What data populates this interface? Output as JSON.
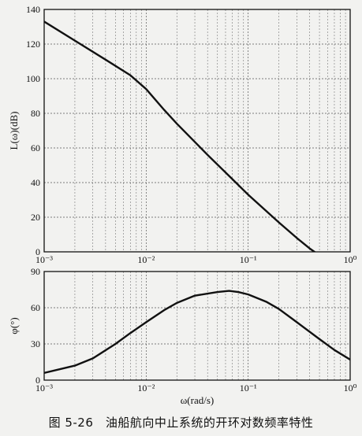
{
  "caption": "图 5-26　油船航向中止系统的开环对数频率特性",
  "chart_data": [
    {
      "type": "line",
      "name": "magnitude",
      "xlabel": "",
      "ylabel": "L(ω)(dB)",
      "xscale": "log",
      "xlim": [
        0.001,
        1
      ],
      "ylim": [
        0,
        140
      ],
      "yticks": [
        0,
        20,
        40,
        60,
        80,
        100,
        120,
        140
      ],
      "xtick_labels": [
        "10⁻³",
        "10⁻²",
        "10⁻¹",
        "10⁰"
      ],
      "grid": true,
      "series": [
        {
          "x": [
            0.001,
            0.002,
            0.004,
            0.007,
            0.01,
            0.015,
            0.02,
            0.04,
            0.07,
            0.1,
            0.2,
            0.3,
            0.4,
            0.5
          ],
          "y": [
            133,
            122,
            111,
            102,
            94,
            82,
            74,
            56,
            42,
            33,
            17,
            8,
            2,
            -2
          ]
        }
      ]
    },
    {
      "type": "line",
      "name": "phase",
      "xlabel": "ω(rad/s)",
      "ylabel": "φ(°)",
      "xscale": "log",
      "xlim": [
        0.001,
        1
      ],
      "ylim": [
        0,
        90
      ],
      "yticks": [
        0,
        30,
        60,
        90
      ],
      "xtick_labels": [
        "10⁻³",
        "10⁻²",
        "10⁻¹",
        "10⁰"
      ],
      "grid": true,
      "series": [
        {
          "x": [
            0.001,
            0.002,
            0.003,
            0.005,
            0.007,
            0.01,
            0.015,
            0.02,
            0.03,
            0.05,
            0.065,
            0.08,
            0.1,
            0.15,
            0.2,
            0.3,
            0.5,
            0.7,
            1
          ],
          "y": [
            6,
            12,
            18,
            30,
            39,
            48,
            58,
            64,
            70,
            73,
            74,
            73,
            71,
            65,
            59,
            48,
            34,
            25,
            17
          ]
        }
      ]
    }
  ]
}
